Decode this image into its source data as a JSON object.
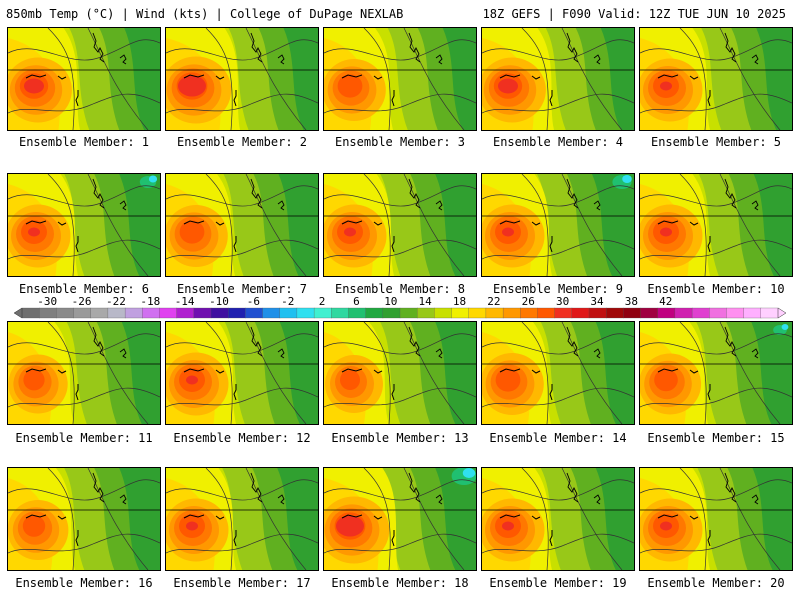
{
  "header": {
    "left_title": "850mb Temp (°C) | Wind (kts) | College of DuPage NEXLAB",
    "right_title": "18Z GEFS | F090 Valid: 12Z TUE JUN 10 2025"
  },
  "colorbar": {
    "tick_labels": [
      "-30",
      "-26",
      "-22",
      "-18",
      "-14",
      "-10",
      "-6",
      "-2",
      "2",
      "6",
      "10",
      "14",
      "18",
      "22",
      "26",
      "30",
      "34",
      "38",
      "42"
    ],
    "colors": [
      "#6f6f6f",
      "#7f7f7f",
      "#8a8a8a",
      "#9a9a9a",
      "#a9a9a9",
      "#b8b8c8",
      "#c0a0e0",
      "#d070f0",
      "#e040f0",
      "#b020d0",
      "#7010b0",
      "#4010a0",
      "#2020b0",
      "#2050d0",
      "#2090e8",
      "#20c0f0",
      "#30e0f0",
      "#40f0d0",
      "#30d8a0",
      "#20c070",
      "#20a840",
      "#30a030",
      "#60b020",
      "#98c818",
      "#c8e000",
      "#f0f000",
      "#ffd800",
      "#ffb800",
      "#ff9800",
      "#ff7800",
      "#ff5800",
      "#f03020",
      "#e01818",
      "#c01010",
      "#a00808",
      "#900010",
      "#a00040",
      "#c00080",
      "#d020b0",
      "#e040d0",
      "#f070e0",
      "#ff90f0",
      "#ffb0ff",
      "#ffd0ff"
    ]
  },
  "members": [
    {
      "label": "Ensemble Member: 1",
      "hot": 0.85,
      "east_cool": 0.35,
      "ne_cyan": 0
    },
    {
      "label": "Ensemble Member: 2",
      "hot": 0.95,
      "east_cool": 0.3,
      "ne_cyan": 0
    },
    {
      "label": "Ensemble Member: 3",
      "hot": 0.7,
      "east_cool": 0.25,
      "ne_cyan": 0
    },
    {
      "label": "Ensemble Member: 4",
      "hot": 0.85,
      "east_cool": 0.25,
      "ne_cyan": 0
    },
    {
      "label": "Ensemble Member: 5",
      "hot": 0.75,
      "east_cool": 0.35,
      "ne_cyan": 0
    },
    {
      "label": "Ensemble Member: 6",
      "hot": 0.75,
      "east_cool": 0.55,
      "ne_cyan": 0.3
    },
    {
      "label": "Ensemble Member: 7",
      "hot": 0.7,
      "east_cool": 0.5,
      "ne_cyan": 0
    },
    {
      "label": "Ensemble Member: 8",
      "hot": 0.75,
      "east_cool": 0.55,
      "ne_cyan": 0
    },
    {
      "label": "Ensemble Member: 9",
      "hot": 0.75,
      "east_cool": 0.6,
      "ne_cyan": 0.4
    },
    {
      "label": "Ensemble Member: 10",
      "hot": 0.75,
      "east_cool": 0.45,
      "ne_cyan": 0
    },
    {
      "label": "Ensemble Member: 11",
      "hot": 0.55,
      "east_cool": 0.45,
      "ne_cyan": 0
    },
    {
      "label": "Ensemble Member: 12",
      "hot": 0.75,
      "east_cool": 0.45,
      "ne_cyan": 0
    },
    {
      "label": "Ensemble Member: 13",
      "hot": 0.5,
      "east_cool": 0.55,
      "ne_cyan": 0
    },
    {
      "label": "Ensemble Member: 14",
      "hot": 0.7,
      "east_cool": 0.45,
      "ne_cyan": 0
    },
    {
      "label": "Ensemble Member: 15",
      "hot": 0.65,
      "east_cool": 0.55,
      "ne_cyan": 0.2
    },
    {
      "label": "Ensemble Member: 16",
      "hot": 0.6,
      "east_cool": 0.55,
      "ne_cyan": 0
    },
    {
      "label": "Ensemble Member: 17",
      "hot": 0.75,
      "east_cool": 0.55,
      "ne_cyan": 0
    },
    {
      "label": "Ensemble Member: 18",
      "hot": 0.95,
      "east_cool": 0.55,
      "ne_cyan": 0.6
    },
    {
      "label": "Ensemble Member: 19",
      "hot": 0.75,
      "east_cool": 0.45,
      "ne_cyan": 0
    },
    {
      "label": "Ensemble Member: 20",
      "hot": 0.75,
      "east_cool": 0.5,
      "ne_cyan": 0
    }
  ]
}
